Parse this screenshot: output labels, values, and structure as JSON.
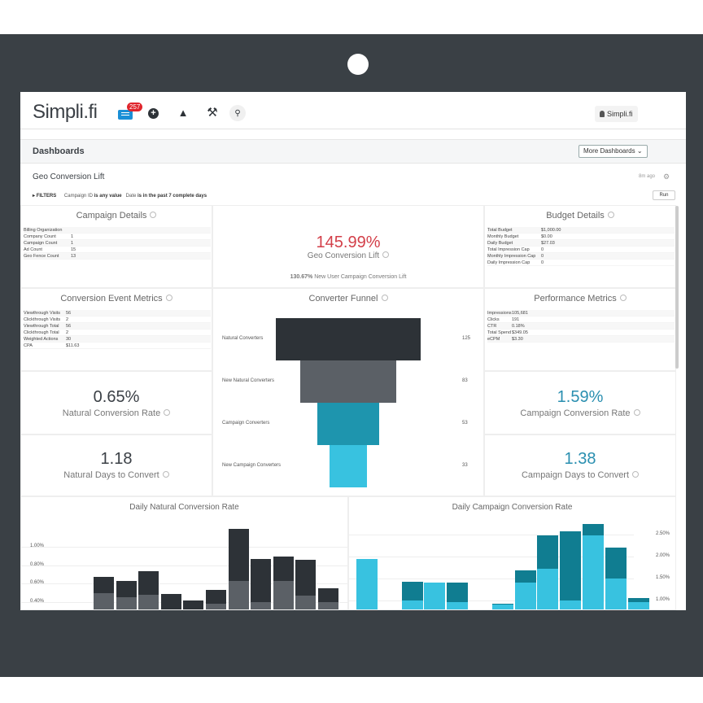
{
  "brand": {
    "logo": "Simpli.fi"
  },
  "topbar": {
    "notification_count": "257",
    "user_label": "Simpli.fi",
    "icons": [
      "message-icon",
      "plus-icon",
      "bell-icon",
      "tools-icon",
      "search-icon"
    ]
  },
  "dashbar": {
    "title": "Dashboards",
    "more_label": "More Dashboards"
  },
  "dashboard": {
    "title": "Geo Conversion Lift",
    "updated": "8m ago",
    "filters_label": "FILTERS",
    "filter_1_field": "Campaign ID",
    "filter_1_op": "is any value",
    "filter_2_field": "Date",
    "filter_2_op": "is in the past 7 complete days",
    "run_label": "Run"
  },
  "campaign_details": {
    "title": "Campaign Details",
    "rows": [
      {
        "k": "Billing Organization",
        "v": ""
      },
      {
        "k": "Company Count",
        "v": "1"
      },
      {
        "k": "Campaign Count",
        "v": "1"
      },
      {
        "k": "Ad Count",
        "v": "15"
      },
      {
        "k": "Geo Fence Count",
        "v": "13"
      }
    ]
  },
  "geo_lift": {
    "value": "145.99%",
    "label": "Geo Conversion Lift",
    "sub_value": "130.67%",
    "sub_label": "New User Campaign Conversion Lift"
  },
  "budget_details": {
    "title": "Budget Details",
    "rows": [
      {
        "k": "Total Budget",
        "v": "$1,000.00"
      },
      {
        "k": "Monthly Budget",
        "v": "$0.00"
      },
      {
        "k": "Daily Budget",
        "v": "$27.03"
      },
      {
        "k": "Total Impression Cap",
        "v": "0"
      },
      {
        "k": "Monthly Impression Cap",
        "v": "0"
      },
      {
        "k": "Daily Impression Cap",
        "v": "0"
      }
    ]
  },
  "conversion_metrics": {
    "title": "Conversion Event Metrics",
    "rows": [
      {
        "k": "Viewthrough Visits",
        "v": "56"
      },
      {
        "k": "Clickthrough Visits",
        "v": "2"
      },
      {
        "k": "Viewthrough Total",
        "v": "56"
      },
      {
        "k": "Clickthrough Total",
        "v": "2"
      },
      {
        "k": "Weighted Actions",
        "v": "30"
      },
      {
        "k": "CPA",
        "v": "$11.63"
      }
    ]
  },
  "funnel": {
    "title": "Converter Funnel",
    "stages": [
      {
        "label": "Natural Converters",
        "value": 125,
        "color": "#2d3237"
      },
      {
        "label": "New Natural Converters",
        "value": 83,
        "color": "#5b6066"
      },
      {
        "label": "Campaign Converters",
        "value": 53,
        "color": "#1e95ae"
      },
      {
        "label": "New Campaign Converters",
        "value": 33,
        "color": "#38c2e0"
      }
    ]
  },
  "performance_metrics": {
    "title": "Performance Metrics",
    "rows": [
      {
        "k": "Impressions",
        "v": "105,681"
      },
      {
        "k": "Clicks",
        "v": "191"
      },
      {
        "k": "CTR",
        "v": "0.18%"
      },
      {
        "k": "Total Spend",
        "v": "$349.05"
      },
      {
        "k": "eCPM",
        "v": "$3.30"
      }
    ]
  },
  "kpis": {
    "natural_rate": {
      "value": "0.65%",
      "label": "Natural Conversion Rate"
    },
    "natural_days": {
      "value": "1.18",
      "label": "Natural Days to Convert"
    },
    "campaign_rate": {
      "value": "1.59%",
      "label": "Campaign Conversion Rate"
    },
    "campaign_days": {
      "value": "1.38",
      "label": "Campaign Days to Convert"
    }
  },
  "chart_data": [
    {
      "type": "bar",
      "title": "Daily Natural Conversion Rate",
      "y_ticks": [
        "1.00%",
        "0.80%",
        "0.60%",
        "0.40%"
      ],
      "ylim": [
        0.3,
        1.35
      ],
      "series": [
        {
          "values": [
            0.67,
            0.63,
            0.74,
            0.49,
            0.42,
            0.53,
            1.2,
            0.87,
            0.9,
            0.86,
            0.55
          ],
          "color": "#2d3237"
        },
        {
          "values": [
            0.5,
            0.45,
            0.48,
            0.3,
            0.3,
            0.38,
            0.63,
            0.4,
            0.63,
            0.47,
            0.4
          ],
          "color": "#5b6066"
        }
      ]
    },
    {
      "type": "bar",
      "title": "Daily Campaign Conversion Rate",
      "y_ticks": [
        "2.50%",
        "2.00%",
        "1.50%",
        "1.00%"
      ],
      "ylim": [
        0.75,
        2.95
      ],
      "series": [
        {
          "values": [
            1.95,
            null,
            1.42,
            1.4,
            1.4,
            null,
            0.92,
            1.68,
            2.48,
            2.58,
            2.75,
            2.21,
            1.05
          ],
          "color": "#107d91"
        },
        {
          "values": [
            1.95,
            null,
            1.0,
            1.4,
            0.95,
            null,
            0.9,
            1.41,
            1.72,
            1.0,
            2.48,
            1.5,
            0.95
          ],
          "color": "#38c2e0"
        }
      ]
    }
  ]
}
